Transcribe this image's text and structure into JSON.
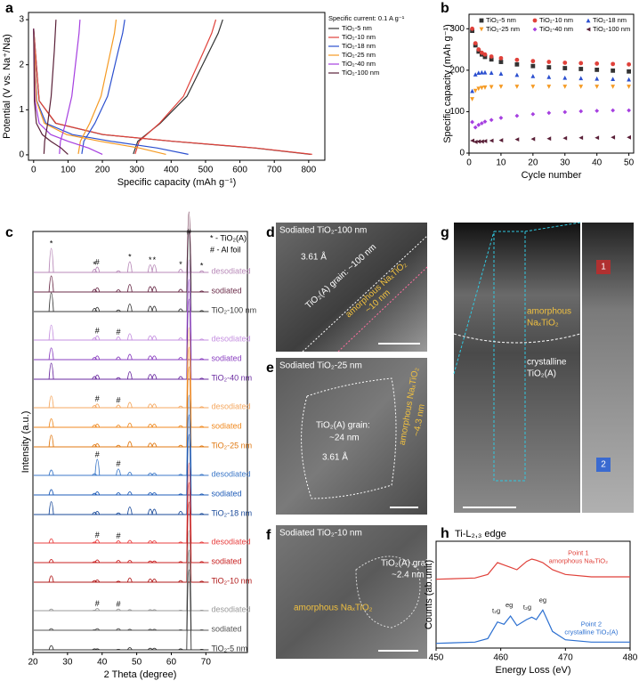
{
  "chart_data": [
    {
      "type": "line",
      "panel_label": "a",
      "xlabel": "Specific capacity (mAh g⁻¹)",
      "ylabel": "Potential (V vs. Na⁺/Na)",
      "xlim": [
        -15,
        847
      ],
      "xticks": [
        0,
        100,
        200,
        300,
        400,
        500,
        600,
        700,
        800
      ],
      "ylim": [
        -0.12,
        3.16
      ],
      "yticks": [
        0,
        1,
        2,
        3
      ],
      "legend": "outside right",
      "legend_title": "Specific current: 0.1 A g⁻¹",
      "series": [
        {
          "name": "TiO₂-5 nm",
          "color": "#333333",
          "x": [
            0,
            16,
            64,
            201,
            403,
            644,
            805,
            null,
            290,
            303,
            368,
            446,
            511,
            537,
            550
          ],
          "values": [
            2.8,
            1.2,
            0.7,
            0.45,
            0.3,
            0.15,
            0.01,
            null,
            0.02,
            0.3,
            0.7,
            1.3,
            2.3,
            2.7,
            3.0
          ]
        },
        {
          "name": "TiO₂-10 nm",
          "color": "#e0413a",
          "x": [
            0,
            16,
            65,
            203,
            405,
            648,
            810,
            null,
            295,
            307,
            366,
            436,
            495,
            518,
            530
          ],
          "values": [
            2.8,
            1.2,
            0.7,
            0.45,
            0.3,
            0.15,
            0.01,
            null,
            0.02,
            0.3,
            0.7,
            1.3,
            2.3,
            2.7,
            3.0
          ]
        },
        {
          "name": "TiO₂-18 nm",
          "color": "#2b4fcf",
          "x": [
            0,
            9,
            36,
            113,
            225,
            360,
            450,
            null,
            140,
            146,
            178,
            215,
            246,
            259,
            265
          ],
          "values": [
            2.8,
            1.2,
            0.7,
            0.45,
            0.3,
            0.15,
            0.01,
            null,
            0.02,
            0.3,
            0.7,
            1.3,
            2.3,
            2.7,
            3.0
          ]
        },
        {
          "name": "TiO₂-25 nm",
          "color": "#f59a23",
          "x": [
            0,
            8,
            31,
            96,
            193,
            308,
            385,
            null,
            130,
            136,
            163,
            196,
            224,
            235,
            240
          ],
          "values": [
            2.8,
            1.2,
            0.7,
            0.45,
            0.3,
            0.15,
            0.01,
            null,
            0.02,
            0.3,
            0.7,
            1.3,
            2.3,
            2.7,
            3.0
          ]
        },
        {
          "name": "TiO₂-40 nm",
          "color": "#a640e0",
          "x": [
            0,
            4,
            16,
            50,
            100,
            160,
            200,
            null,
            75,
            78,
            93,
            111,
            126,
            132,
            135
          ],
          "values": [
            2.8,
            1.2,
            0.7,
            0.45,
            0.3,
            0.15,
            0.01,
            null,
            0.02,
            0.3,
            0.7,
            1.3,
            2.3,
            2.7,
            3.0
          ]
        },
        {
          "name": "TiO₂-100 nm",
          "color": "#5a2038",
          "x": [
            0,
            2,
            8,
            25,
            50,
            80,
            100,
            null,
            30,
            32,
            41,
            51,
            60,
            63,
            65
          ],
          "values": [
            2.8,
            1.2,
            0.7,
            0.45,
            0.3,
            0.15,
            0.01,
            null,
            0.02,
            0.3,
            0.7,
            1.3,
            2.3,
            2.7,
            3.0
          ]
        }
      ]
    },
    {
      "type": "line",
      "panel_label": "b",
      "xlabel": "Cycle number",
      "ylabel": "Specific capacity (mAh g⁻¹)",
      "markers": true,
      "xlim": [
        0,
        51.5
      ],
      "xticks": [
        0,
        10,
        20,
        30,
        40,
        50
      ],
      "ylim": [
        0,
        335
      ],
      "yticks": [
        0,
        100,
        200,
        300
      ],
      "legend": "top",
      "x": [
        1,
        2,
        3,
        4,
        5,
        7,
        10,
        15,
        20,
        25,
        30,
        35,
        40,
        45,
        50
      ],
      "series": [
        {
          "name": "TiO₂-5 nm",
          "color": "#333333",
          "marker": "square",
          "values": [
            295,
            260,
            245,
            238,
            232,
            226,
            220,
            214,
            210,
            207,
            205,
            203,
            201,
            199,
            197
          ]
        },
        {
          "name": "TiO₂-10 nm",
          "color": "#e0413a",
          "marker": "circle",
          "values": [
            300,
            265,
            250,
            242,
            238,
            233,
            229,
            225,
            222,
            220,
            218,
            217,
            216,
            215,
            214
          ]
        },
        {
          "name": "TiO₂-18 nm",
          "color": "#2b4fcf",
          "marker": "triangle-up",
          "values": [
            150,
            190,
            194,
            195,
            195,
            194,
            192,
            189,
            186,
            184,
            182,
            181,
            180,
            179,
            178
          ]
        },
        {
          "name": "TiO₂-25 nm",
          "color": "#f59a23",
          "marker": "triangle-down",
          "values": [
            130,
            150,
            155,
            157,
            158,
            159,
            160,
            160,
            160,
            160,
            160,
            160,
            160,
            160,
            160
          ]
        },
        {
          "name": "TiO₂-40 nm",
          "color": "#a640e0",
          "marker": "diamond",
          "values": [
            75,
            62,
            68,
            72,
            76,
            80,
            85,
            90,
            94,
            97,
            99,
            101,
            102,
            103,
            103
          ]
        },
        {
          "name": "TiO₂-100 nm",
          "color": "#5a2038",
          "marker": "triangle-left",
          "values": [
            30,
            27,
            28,
            28,
            29,
            30,
            31,
            33,
            34,
            35,
            36,
            37,
            37,
            38,
            38
          ]
        }
      ]
    },
    {
      "type": "xrd",
      "panel_label": "c",
      "xlabel": "2 Theta (degree)",
      "ylabel": "Intensity (a.u.)",
      "xlim": [
        20,
        82
      ],
      "xticks": [
        20,
        30,
        40,
        50,
        60,
        70
      ],
      "peaks": [
        25.3,
        37.8,
        38.6,
        44.7,
        48.0,
        53.9,
        55.1,
        62.7,
        65.1,
        68.8
      ],
      "legend_texts": [
        "* - TiO₂(A)",
        "# - Al foil"
      ],
      "series": [
        {
          "name": "desodiated",
          "color": "#b88ab8",
          "values": [
            45,
            6,
            10,
            3,
            20,
            14,
            14,
            6,
            75,
            3
          ]
        },
        {
          "name": "sodiated",
          "color": "#6b2d4a",
          "values": [
            30,
            5,
            8,
            4,
            14,
            10,
            10,
            5,
            150,
            2
          ]
        },
        {
          "name": "TiO₂-100 nm",
          "color": "#3a3a3a",
          "values": [
            35,
            6,
            8,
            3,
            14,
            10,
            10,
            5,
            150,
            2
          ]
        },
        {
          "name": "desodiated",
          "color": "#c590e0",
          "values": [
            28,
            4,
            8,
            6,
            12,
            8,
            8,
            4,
            150,
            2
          ]
        },
        {
          "name": "sodiated",
          "color": "#8a3fc0",
          "values": [
            22,
            4,
            7,
            5,
            10,
            7,
            7,
            4,
            150,
            2
          ]
        },
        {
          "name": "TiO₂-40 nm",
          "color": "#6a2aa0",
          "values": [
            30,
            5,
            8,
            3,
            14,
            9,
            9,
            5,
            150,
            2
          ]
        },
        {
          "name": "desodiated",
          "color": "#f5a860",
          "values": [
            22,
            4,
            7,
            5,
            10,
            7,
            7,
            3,
            150,
            2
          ]
        },
        {
          "name": "sodiated",
          "color": "#f08a20",
          "values": [
            16,
            4,
            6,
            4,
            8,
            6,
            6,
            3,
            150,
            2
          ]
        },
        {
          "name": "TiO₂-25 nm",
          "color": "#e07810",
          "values": [
            22,
            4,
            6,
            3,
            10,
            7,
            7,
            3,
            150,
            2
          ]
        },
        {
          "name": "desodiated",
          "color": "#3c78c8",
          "values": [
            10,
            3,
            30,
            12,
            6,
            4,
            4,
            2,
            150,
            2
          ]
        },
        {
          "name": "sodiated",
          "color": "#1f5cb8",
          "values": [
            10,
            3,
            6,
            4,
            6,
            4,
            4,
            2,
            150,
            2
          ]
        },
        {
          "name": "TiO₂-18 nm",
          "color": "#1a4a9a",
          "values": [
            24,
            4,
            6,
            3,
            14,
            10,
            10,
            6,
            150,
            2
          ]
        },
        {
          "name": "desodiated",
          "color": "#e84040",
          "values": [
            8,
            2,
            6,
            4,
            5,
            4,
            4,
            2,
            150,
            2
          ]
        },
        {
          "name": "sodiated",
          "color": "#c82020",
          "values": [
            6,
            2,
            5,
            4,
            4,
            3,
            3,
            2,
            150,
            2
          ]
        },
        {
          "name": "TiO₂-10 nm",
          "color": "#b01818",
          "values": [
            12,
            3,
            4,
            2,
            8,
            6,
            6,
            3,
            150,
            2
          ]
        },
        {
          "name": "desodiated",
          "color": "#999999",
          "values": [
            3,
            1,
            4,
            3,
            2,
            2,
            2,
            1,
            150,
            1
          ]
        },
        {
          "name": "sodiated",
          "color": "#555555",
          "values": [
            3,
            1,
            3,
            3,
            2,
            2,
            2,
            1,
            150,
            1
          ]
        },
        {
          "name": "TiO₂-5 nm",
          "color": "#333333",
          "values": [
            8,
            2,
            2,
            1,
            4,
            3,
            3,
            2,
            150,
            1
          ]
        }
      ],
      "peak_marks": [
        {
          "label": "*",
          "x": 25.3,
          "trace": 0
        },
        {
          "label": "*",
          "x": 37.8,
          "trace": 0
        },
        {
          "label": "#",
          "x": 38.6,
          "trace": 0
        },
        {
          "label": "*",
          "x": 48.0,
          "trace": 0
        },
        {
          "label": "*",
          "x": 53.9,
          "trace": 0
        },
        {
          "label": "*",
          "x": 55.1,
          "trace": 0
        },
        {
          "label": "*",
          "x": 62.7,
          "trace": 0
        },
        {
          "label": "#",
          "x": 65.1,
          "trace": 0
        },
        {
          "label": "*",
          "x": 68.8,
          "trace": 0
        },
        {
          "label": "#",
          "x": 38.6,
          "trace": 3
        },
        {
          "label": "#",
          "x": 44.7,
          "trace": 3
        },
        {
          "label": "#",
          "x": 38.6,
          "trace": 6
        },
        {
          "label": "#",
          "x": 44.7,
          "trace": 6
        },
        {
          "label": "#",
          "x": 38.6,
          "trace": 9
        },
        {
          "label": "#",
          "x": 44.7,
          "trace": 9
        },
        {
          "label": "#",
          "x": 38.6,
          "trace": 12
        },
        {
          "label": "#",
          "x": 44.7,
          "trace": 12
        },
        {
          "label": "#",
          "x": 38.6,
          "trace": 15
        },
        {
          "label": "#",
          "x": 44.7,
          "trace": 15
        }
      ]
    },
    {
      "type": "line",
      "panel_label": "h",
      "title": "Ti-L₂,₃ edge",
      "xlabel": "Energy Loss (eV)",
      "ylabel": "Counts (ab.unit)",
      "xlim": [
        450,
        480
      ],
      "xticks": [
        450,
        460,
        470,
        480
      ],
      "ylim": [
        0,
        90
      ],
      "x": [
        450,
        456,
        458,
        459.5,
        460.5,
        461.5,
        462.5,
        464,
        464.8,
        465.5,
        466.5,
        468,
        470,
        474,
        480
      ],
      "series": [
        {
          "name": "Point 1",
          "color": "#e0413a",
          "values": [
            58,
            59,
            62,
            72,
            70,
            68,
            66,
            73,
            75,
            74,
            72,
            66,
            62,
            60,
            60
          ]
        },
        {
          "name": "Point 2",
          "color": "#2b6fd0",
          "values": [
            4,
            5,
            8,
            22,
            20,
            27,
            19,
            24,
            26,
            24,
            32,
            14,
            7,
            5,
            5
          ]
        }
      ],
      "annotations": [
        {
          "text": "Point 1",
          "x": 472,
          "y": 80,
          "color": "#e0413a"
        },
        {
          "text": "amorphous NaₓTiO₂",
          "x": 472,
          "y": 73,
          "color": "#e0413a"
        },
        {
          "text": "Point 2",
          "x": 474,
          "y": 20,
          "color": "#2b6fd0"
        },
        {
          "text": "crystalline TiO₂(A)",
          "x": 474,
          "y": 13,
          "color": "#2b6fd0"
        },
        {
          "text": "t₂g",
          "x": 459.3,
          "y": 31,
          "color": "#222222"
        },
        {
          "text": "eg",
          "x": 461.3,
          "y": 36,
          "color": "#222222"
        },
        {
          "text": "t₂g",
          "x": 464.1,
          "y": 34,
          "color": "#222222"
        },
        {
          "text": "eg",
          "x": 466.5,
          "y": 40,
          "color": "#222222"
        }
      ]
    }
  ],
  "images": [
    {
      "panel_label": "d",
      "caption": "Sodiated TiO₂-100 nm",
      "labels": [
        "3.61 Å",
        "TiO₂(A) grain: ~100 nm",
        "amorphous NaₓTiO₂",
        "~10 nm"
      ]
    },
    {
      "panel_label": "e",
      "caption": "Sodiated TiO₂-25 nm",
      "labels": [
        "TiO₂(A) grain:",
        "~24 nm",
        "3.61 Å",
        "amorphous NaₓTiO₂",
        "~4.3 nm"
      ]
    },
    {
      "panel_label": "f",
      "caption": "Sodiated TiO₂-10 nm",
      "labels": [
        "TiO₂(A) grain:",
        "~2.4 nm",
        "amorphous NaₓTiO₂"
      ]
    },
    {
      "panel_label": "g",
      "labels": [
        "amorphous",
        "NaₓTiO₂",
        "crystalline",
        "TiO₂(A)",
        "1",
        "2"
      ]
    }
  ]
}
